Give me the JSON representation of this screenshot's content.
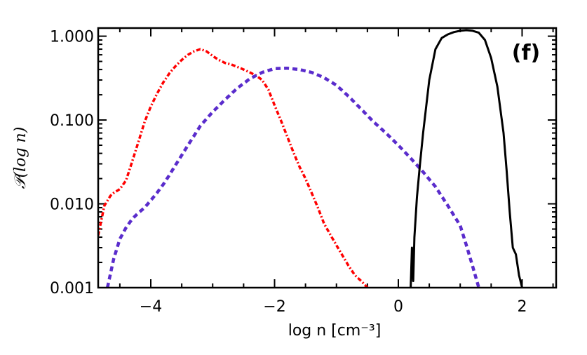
{
  "chart_data": {
    "type": "line",
    "panel_label": "(f)",
    "xlabel": "log n [cm⁻³]",
    "ylabel": "𝒫(log n)",
    "xlim": [
      -4.85,
      2.55
    ],
    "ylim": [
      0.001,
      1.25
    ],
    "y_scale": "log",
    "x_ticks": [
      -4,
      -2,
      0,
      2
    ],
    "x_tick_labels": [
      "−4",
      "−2",
      "0",
      "2"
    ],
    "y_ticks": [
      0.001,
      0.01,
      0.1,
      1.0
    ],
    "y_tick_labels": [
      "0.001",
      "0.010",
      "0.100",
      "1.000"
    ],
    "series": [
      {
        "color": "#ff0000",
        "style": "dash-dot",
        "x": [
          -4.85,
          -4.75,
          -4.65,
          -4.6,
          -4.5,
          -4.4,
          -4.3,
          -4.2,
          -4.1,
          -4.0,
          -3.9,
          -3.8,
          -3.7,
          -3.6,
          -3.5,
          -3.4,
          -3.3,
          -3.2,
          -3.1,
          -3.0,
          -2.9,
          -2.8,
          -2.7,
          -2.6,
          -2.5,
          -2.4,
          -2.3,
          -2.2,
          -2.1,
          -2.0,
          -1.9,
          -1.8,
          -1.7,
          -1.6,
          -1.5,
          -1.4,
          -1.3,
          -1.2,
          -1.1,
          -1.0,
          -0.9,
          -0.8,
          -0.7,
          -0.6,
          -0.5
        ],
        "y": [
          0.0042,
          0.0095,
          0.0125,
          0.0135,
          0.015,
          0.019,
          0.032,
          0.055,
          0.095,
          0.145,
          0.205,
          0.28,
          0.36,
          0.44,
          0.52,
          0.6,
          0.66,
          0.7,
          0.66,
          0.58,
          0.52,
          0.48,
          0.46,
          0.43,
          0.4,
          0.37,
          0.34,
          0.3,
          0.23,
          0.15,
          0.1,
          0.065,
          0.042,
          0.028,
          0.02,
          0.0135,
          0.009,
          0.0058,
          0.0043,
          0.0032,
          0.0024,
          0.0018,
          0.0014,
          0.0012,
          0.001
        ]
      },
      {
        "color": "#5a2ccc",
        "style": "dashed",
        "x": [
          -4.7,
          -4.6,
          -4.5,
          -4.4,
          -4.3,
          -4.2,
          -4.1,
          -4.0,
          -3.9,
          -3.8,
          -3.7,
          -3.6,
          -3.5,
          -3.4,
          -3.3,
          -3.2,
          -3.0,
          -2.8,
          -2.6,
          -2.4,
          -2.2,
          -2.0,
          -1.8,
          -1.6,
          -1.4,
          -1.2,
          -1.0,
          -0.8,
          -0.6,
          -0.4,
          -0.2,
          0.0,
          0.2,
          0.4,
          0.6,
          0.8,
          1.0,
          1.1,
          1.2,
          1.3
        ],
        "y": [
          0.001,
          0.0022,
          0.0038,
          0.0052,
          0.0066,
          0.0078,
          0.009,
          0.011,
          0.0135,
          0.017,
          0.022,
          0.029,
          0.038,
          0.05,
          0.065,
          0.085,
          0.125,
          0.175,
          0.24,
          0.31,
          0.37,
          0.41,
          0.415,
          0.4,
          0.37,
          0.32,
          0.26,
          0.19,
          0.135,
          0.095,
          0.07,
          0.05,
          0.035,
          0.024,
          0.016,
          0.0095,
          0.0055,
          0.0032,
          0.0018,
          0.001
        ]
      },
      {
        "color": "#000000",
        "style": "solid",
        "x": [
          0.2,
          0.22,
          0.24,
          0.26,
          0.3,
          0.35,
          0.4,
          0.5,
          0.6,
          0.7,
          0.8,
          0.9,
          1.0,
          1.1,
          1.2,
          1.3,
          1.4,
          1.5,
          1.6,
          1.7,
          1.75,
          1.8,
          1.85,
          1.9,
          1.95,
          2.0
        ],
        "y": [
          0.001,
          0.003,
          0.0012,
          0.004,
          0.012,
          0.03,
          0.07,
          0.3,
          0.7,
          0.95,
          1.05,
          1.12,
          1.16,
          1.18,
          1.16,
          1.1,
          0.9,
          0.55,
          0.25,
          0.07,
          0.025,
          0.008,
          0.003,
          0.0025,
          0.0014,
          0.001
        ]
      }
    ]
  }
}
